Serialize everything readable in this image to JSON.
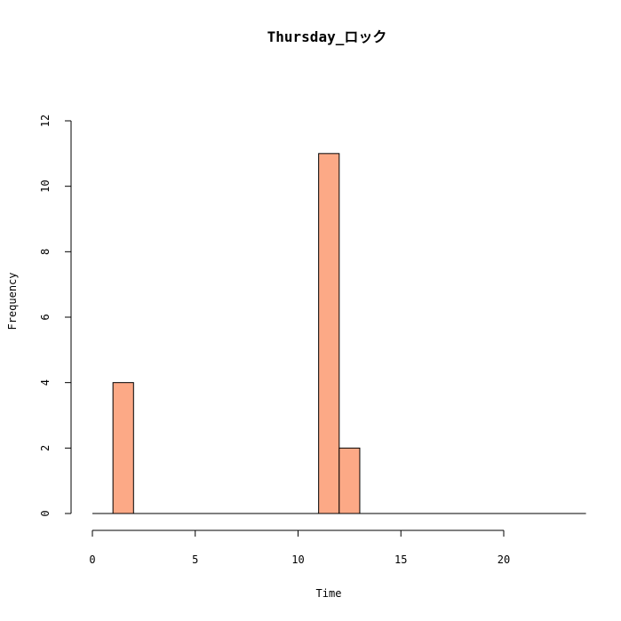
{
  "chart_data": {
    "type": "bar",
    "title": "Thursday_ロック",
    "xlabel": "Time",
    "ylabel": "Frequency",
    "bin_width": 1,
    "x_range": [
      0,
      24
    ],
    "xlim": [
      0,
      24
    ],
    "ylim": [
      0,
      12
    ],
    "x_ticks": [
      0,
      5,
      10,
      15,
      20
    ],
    "y_ticks": [
      0,
      2,
      4,
      6,
      8,
      10,
      12
    ],
    "bins": [
      {
        "x0": 1,
        "x1": 2,
        "count": 4
      },
      {
        "x0": 11,
        "x1": 12,
        "count": 11
      },
      {
        "x0": 12,
        "x1": 13,
        "count": 2
      }
    ],
    "bar_color": "#FCA986",
    "grid": false
  }
}
